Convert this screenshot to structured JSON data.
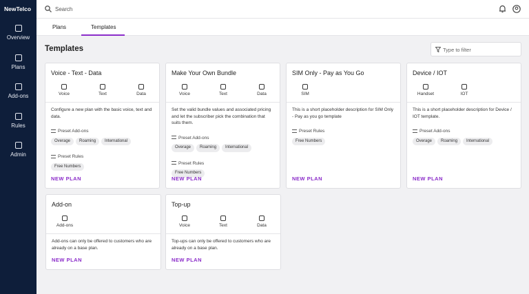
{
  "brand": "NewTelco",
  "search": "Search",
  "nav": [
    "Overview",
    "Plans",
    "Add-ons",
    "Rules",
    "Admin"
  ],
  "tabs": [
    "Plans",
    "Templates"
  ],
  "page_title": "Templates",
  "filter": "Type to filter",
  "cards": [
    {
      "title": "Voice - Text - Data",
      "features": [
        "Voice",
        "Text",
        "Data"
      ],
      "description": "Configure a new plan with the basic voice, text and data.",
      "sections": [
        {
          "heading": "Preset Add-ons",
          "tags": [
            "Overage",
            "Roaming",
            "International"
          ]
        },
        {
          "heading": "Preset Rules",
          "tags": [
            "Free Numbers"
          ]
        }
      ],
      "action": "NEW PLAN"
    },
    {
      "title": "Make Your Own Bundle",
      "features": [
        "Voice",
        "Text",
        "Data"
      ],
      "description": "Set the valid bundle values and associated pricing and let the subscriber pick the combination that suits them.",
      "sections": [
        {
          "heading": "Preset Add-ons",
          "tags": [
            "Overage",
            "Roaming",
            "International"
          ]
        },
        {
          "heading": "Preset Rules",
          "tags": [
            "Free Numbers"
          ]
        }
      ],
      "action": "NEW PLAN"
    },
    {
      "title": "SIM Only - Pay as You Go",
      "features": [
        "SIM"
      ],
      "description": "This is a short placeholder description for SIM Only - Pay as you go template",
      "sections": [
        {
          "heading": "Preset Rules",
          "tags": [
            "Free Numbers"
          ]
        }
      ],
      "action": "NEW PLAN"
    },
    {
      "title": "Device / IOT",
      "features": [
        "Handset",
        "IOT"
      ],
      "description": "This is a short placeholder description for Device / IOT template.",
      "sections": [
        {
          "heading": "Preset Add-ons",
          "tags": [
            "Overage",
            "Roaming",
            "International"
          ]
        }
      ],
      "action": "NEW PLAN"
    },
    {
      "title": "Add-on",
      "features": [
        "Add-ons"
      ],
      "description": "Add-ons can only be offered to customers who are already on a base plan.",
      "sections": [],
      "action": "NEW PLAN"
    },
    {
      "title": "Top-up",
      "features": [
        "Voice",
        "Text",
        "Data"
      ],
      "description": "Top-ups can only be offered to customers who are already on a base plan.",
      "sections": [],
      "action": "NEW PLAN"
    }
  ]
}
